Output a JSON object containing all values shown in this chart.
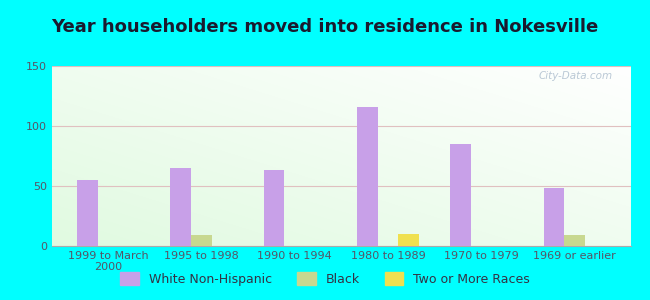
{
  "title": "Year householders moved into residence in Nokesville",
  "categories": [
    "1999 to March\n2000",
    "1995 to 1998",
    "1990 to 1994",
    "1980 to 1989",
    "1970 to 1979",
    "1969 or earlier"
  ],
  "white_non_hispanic": [
    55,
    65,
    63,
    116,
    85,
    48
  ],
  "black": [
    0,
    9,
    0,
    0,
    0,
    9
  ],
  "two_or_more_races": [
    0,
    0,
    0,
    10,
    0,
    0
  ],
  "white_color": "#c8a0e8",
  "black_color": "#c8d890",
  "two_races_color": "#f0e050",
  "background_outer": "#00ffff",
  "ylim": [
    0,
    150
  ],
  "yticks": [
    0,
    50,
    100,
    150
  ],
  "bar_width": 0.22,
  "title_fontsize": 13,
  "tick_fontsize": 8,
  "legend_fontsize": 9
}
